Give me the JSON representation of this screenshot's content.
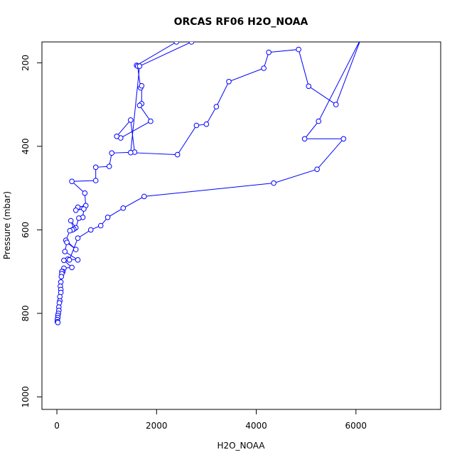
{
  "chart_data": {
    "type": "scatter",
    "title": "ORCAS RF06 H2O_NOAA",
    "xlabel": "H2O_NOAA",
    "ylabel": "Pressure (mbar)",
    "xlim": [
      -300,
      7700
    ],
    "ylim": [
      1030,
      150
    ],
    "y_reversed": true,
    "x_ticks": [
      0,
      2000,
      4000,
      6000
    ],
    "y_ticks": [
      200,
      400,
      600,
      800,
      1000
    ],
    "grid": false,
    "legend": "none",
    "series_color": "#0000ff",
    "series": [
      {
        "x": [
          2400,
          1600,
          1620,
          1680,
          1700,
          1700,
          1660,
          1880,
          1280,
          1200,
          1480,
          1560,
          1100,
          1050,
          780,
          780,
          300,
          560,
          580,
          420,
          380,
          540,
          520,
          440,
          380,
          280,
          340,
          310,
          260,
          180,
          380,
          200,
          160,
          420,
          220,
          140,
          300,
          140,
          120,
          100,
          100,
          90,
          80,
          70,
          80,
          80,
          60,
          60,
          50,
          40,
          40,
          30,
          20,
          20,
          10,
          10,
          20
        ],
        "y": [
          150,
          206,
          208,
          260,
          255,
          298,
          302,
          340,
          380,
          376,
          337,
          414,
          416,
          448,
          450,
          482,
          484,
          512,
          542,
          546,
          553,
          550,
          570,
          572,
          595,
          578,
          598,
          600,
          602,
          625,
          647,
          630,
          652,
          672,
          670,
          673,
          690,
          692,
          700,
          700,
          705,
          712,
          725,
          735,
          743,
          750,
          760,
          770,
          775,
          785,
          793,
          800,
          805,
          810,
          815,
          820,
          822
        ]
      },
      {
        "x": [
          2700,
          1660,
          1480,
          2420,
          2800,
          3000,
          3200,
          3450,
          4150,
          4250,
          4850,
          5050,
          5600,
          6100,
          5250,
          4970,
          5750,
          5220,
          4350,
          1750,
          1330,
          1020,
          880,
          680,
          420,
          250
        ],
        "y": [
          150,
          208,
          415,
          420,
          350,
          347,
          305,
          245,
          213,
          175,
          168,
          256,
          300,
          142,
          340,
          382,
          382,
          455,
          488,
          520,
          548,
          570,
          590,
          600,
          620,
          672
        ]
      }
    ]
  }
}
